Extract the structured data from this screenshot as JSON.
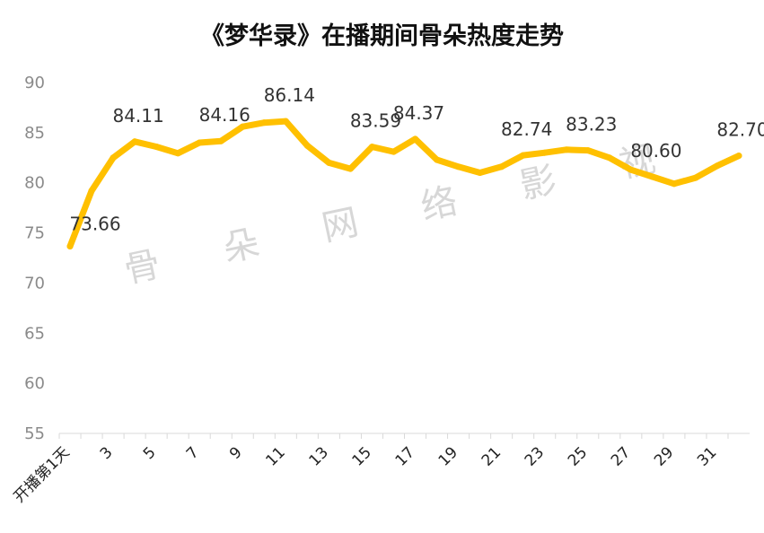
{
  "chart_data": {
    "type": "line",
    "title": "《梦华录》在播期间骨朵热度走势",
    "watermark": "骨 朵 网 络 影 视",
    "xlabel": "",
    "ylabel": "",
    "ylim": [
      55,
      90
    ],
    "y_ticks": [
      55,
      60,
      65,
      70,
      75,
      80,
      85,
      90
    ],
    "grid": false,
    "line_color": "#FFC000",
    "categories": [
      "开播第1天",
      "2",
      "3",
      "4",
      "5",
      "6",
      "7",
      "8",
      "9",
      "10",
      "11",
      "12",
      "13",
      "14",
      "15",
      "16",
      "17",
      "18",
      "19",
      "20",
      "21",
      "22",
      "23",
      "24",
      "25",
      "26",
      "27",
      "28",
      "29",
      "30",
      "31",
      "32"
    ],
    "x_tick_labels": [
      "开播第1天",
      "",
      "3",
      "",
      "5",
      "",
      "7",
      "",
      "9",
      "",
      "11",
      "",
      "13",
      "",
      "15",
      "",
      "17",
      "",
      "19",
      "",
      "21",
      "",
      "23",
      "",
      "25",
      "",
      "27",
      "",
      "29",
      "",
      "31",
      ""
    ],
    "series": [
      {
        "values": [
          73.66,
          79.2,
          82.5,
          84.11,
          83.6,
          82.95,
          84.0,
          84.16,
          85.6,
          86.0,
          86.14,
          83.7,
          82.0,
          81.4,
          83.59,
          83.1,
          84.37,
          82.3,
          81.6,
          81.0,
          81.6,
          82.74,
          83.0,
          83.3,
          83.23,
          82.5,
          81.3,
          80.6,
          79.9,
          80.5,
          81.7,
          82.7
        ],
        "data_labels": [
          "73.66",
          "",
          "",
          "84.11",
          "",
          "",
          "",
          "84.16",
          "",
          "",
          "86.14",
          "",
          "",
          "",
          "83.59",
          "",
          "84.37",
          "",
          "",
          "",
          "",
          "82.74",
          "",
          "",
          "83.23",
          "",
          "",
          "80.60",
          "",
          "",
          "",
          "82.70"
        ]
      }
    ]
  }
}
